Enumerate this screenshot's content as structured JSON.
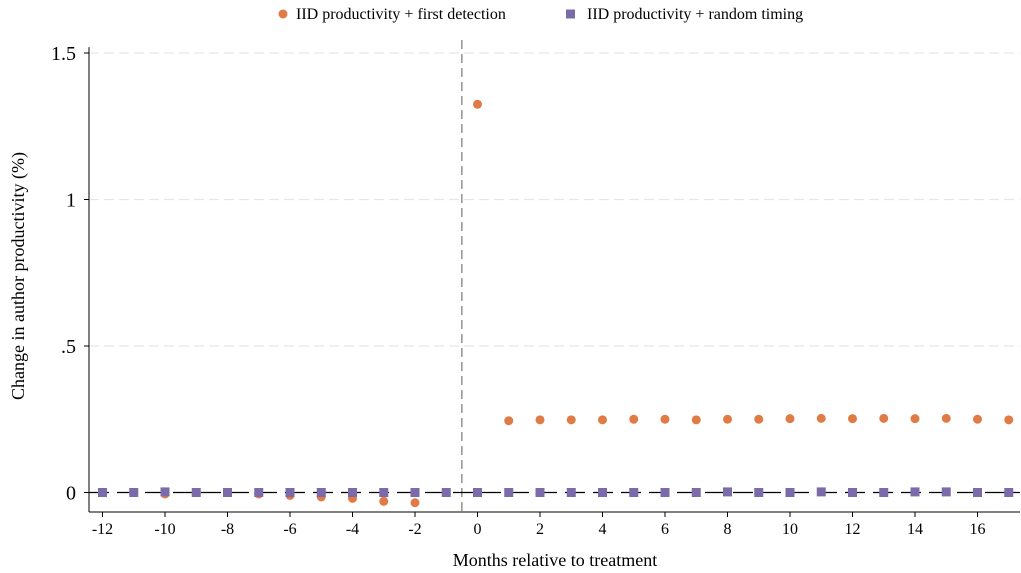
{
  "chart_data": {
    "type": "scatter",
    "xlabel": "Months relative to treatment",
    "ylabel": "Change in author productivity (%)",
    "xlim": [
      -12.4,
      17.4
    ],
    "ylim": [
      -0.08,
      1.55
    ],
    "x_ticks": [
      -12,
      -10,
      -8,
      -6,
      -4,
      -2,
      0,
      2,
      4,
      6,
      8,
      10,
      12,
      14,
      16
    ],
    "x_tick_labels": [
      "-12",
      "-10",
      "-8",
      "-6",
      "-4",
      "-2",
      "0",
      "2",
      "4",
      "6",
      "8",
      "10",
      "12",
      "14",
      "16"
    ],
    "y_ticks": [
      0,
      0.5,
      1,
      1.5
    ],
    "y_tick_labels": [
      "0",
      ".5",
      "1",
      "1.5"
    ],
    "grid": true,
    "legend_position": "top",
    "reference_lines": {
      "horizontal_y": 0,
      "vertical_x": -0.5
    },
    "series": [
      {
        "name": "IID productivity + first detection",
        "marker": "circle",
        "color": "#E07B45",
        "points": [
          [
            -12,
            0.0
          ],
          [
            -11,
            0.0
          ],
          [
            -10,
            -0.005
          ],
          [
            -9,
            0.0
          ],
          [
            -8,
            0.0
          ],
          [
            -7,
            -0.005
          ],
          [
            -6,
            -0.01
          ],
          [
            -5,
            -0.015
          ],
          [
            -4,
            -0.02
          ],
          [
            -3,
            -0.03
          ],
          [
            -2,
            -0.035
          ],
          [
            0,
            1.325
          ],
          [
            1,
            0.245
          ],
          [
            2,
            0.248
          ],
          [
            3,
            0.248
          ],
          [
            4,
            0.248
          ],
          [
            5,
            0.25
          ],
          [
            6,
            0.25
          ],
          [
            7,
            0.248
          ],
          [
            8,
            0.25
          ],
          [
            9,
            0.25
          ],
          [
            10,
            0.252
          ],
          [
            11,
            0.253
          ],
          [
            12,
            0.252
          ],
          [
            13,
            0.253
          ],
          [
            14,
            0.252
          ],
          [
            15,
            0.253
          ],
          [
            16,
            0.25
          ],
          [
            17,
            0.248
          ]
        ]
      },
      {
        "name": "IID productivity + random timing",
        "marker": "square",
        "color": "#7B6BA8",
        "points": [
          [
            -12,
            0.0
          ],
          [
            -11,
            0.0
          ],
          [
            -10,
            0.002
          ],
          [
            -9,
            0.0
          ],
          [
            -8,
            0.0
          ],
          [
            -7,
            0.0
          ],
          [
            -6,
            0.0
          ],
          [
            -5,
            0.0
          ],
          [
            -4,
            0.0
          ],
          [
            -3,
            0.0
          ],
          [
            -2,
            0.0
          ],
          [
            -1,
            0.0
          ],
          [
            0,
            0.0
          ],
          [
            1,
            0.0
          ],
          [
            2,
            0.0
          ],
          [
            3,
            0.0
          ],
          [
            4,
            0.0
          ],
          [
            5,
            0.0
          ],
          [
            6,
            0.0
          ],
          [
            7,
            0.0
          ],
          [
            8,
            0.002
          ],
          [
            9,
            0.0
          ],
          [
            10,
            0.0
          ],
          [
            11,
            0.002
          ],
          [
            12,
            0.0
          ],
          [
            13,
            0.0
          ],
          [
            14,
            0.002
          ],
          [
            15,
            0.002
          ],
          [
            16,
            0.0
          ],
          [
            17,
            0.0
          ]
        ]
      }
    ]
  }
}
